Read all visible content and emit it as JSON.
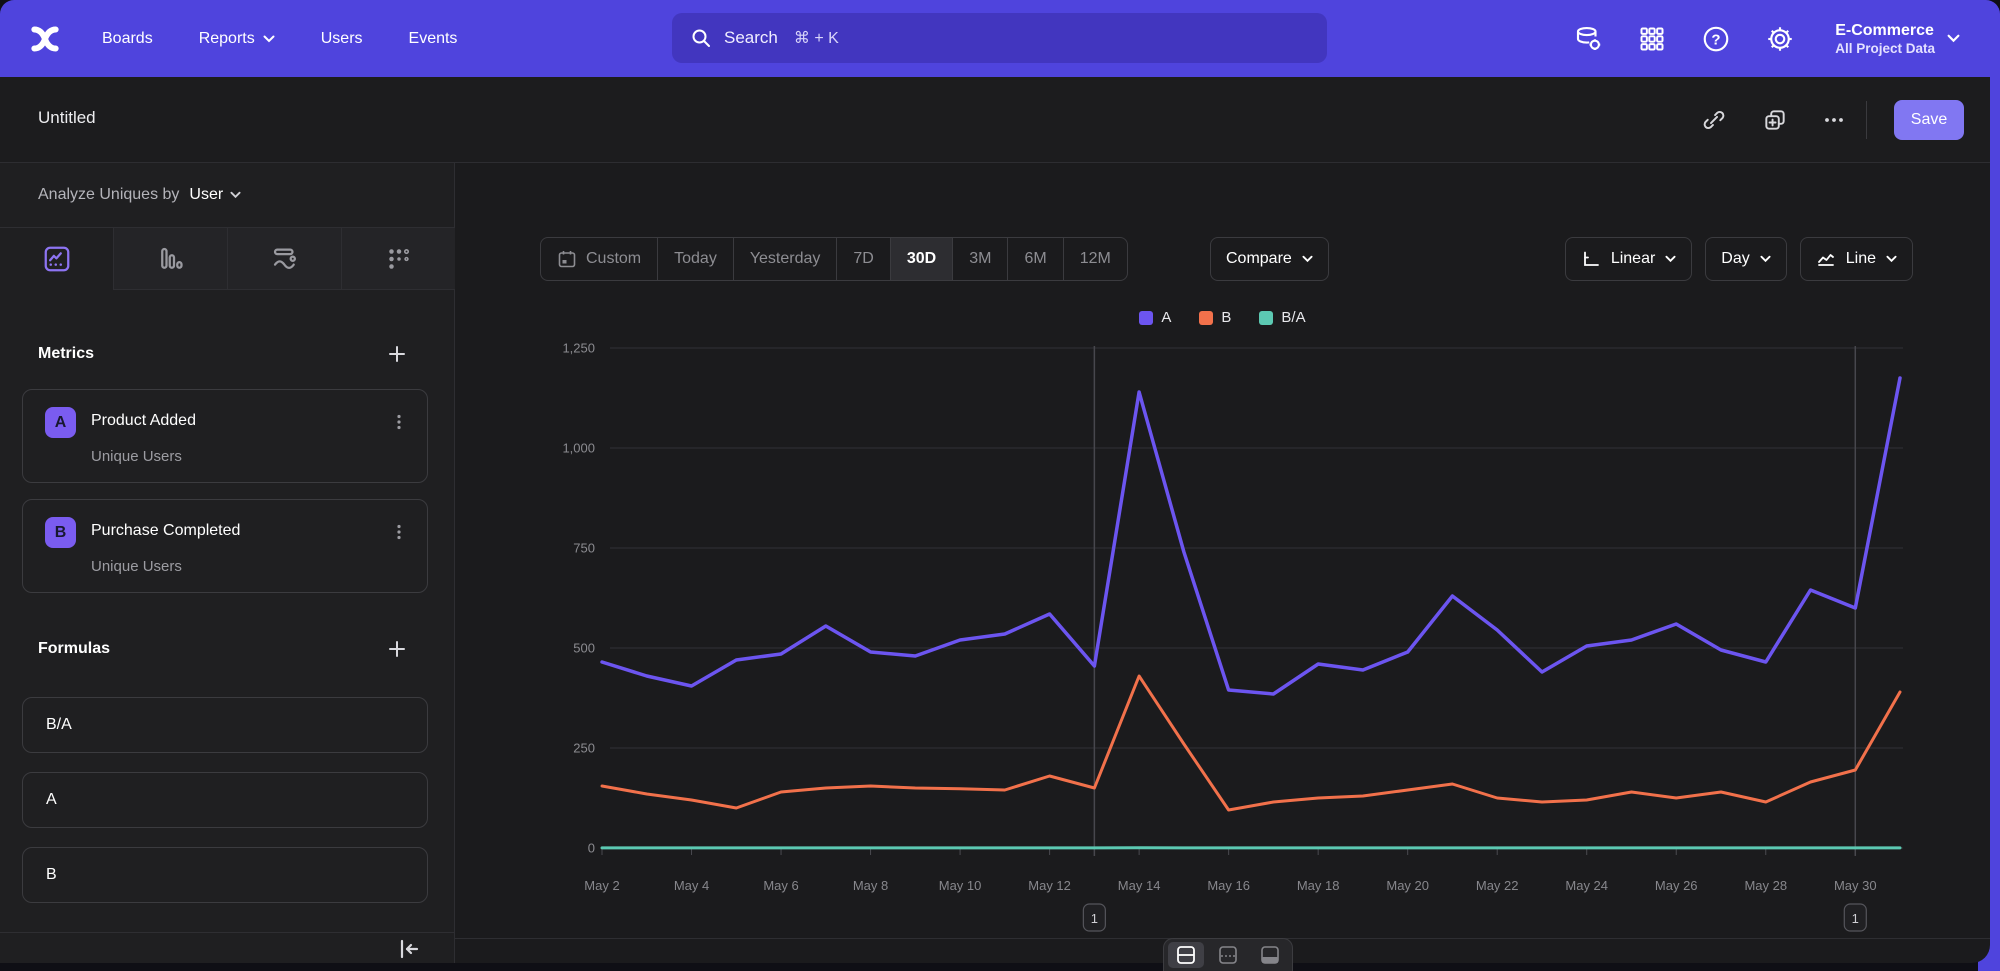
{
  "ui": {
    "nav_bg": "#4f44dd",
    "search_bg": "#4236bf",
    "save_bg": "#8177f2",
    "accent": "#7a5cf0",
    "panel_bg": "#1b1b1d"
  },
  "nav": {
    "brand": "Mixpanel",
    "items": [
      {
        "label": "Boards"
      },
      {
        "label": "Reports"
      },
      {
        "label": "Users"
      },
      {
        "label": "Events"
      }
    ],
    "search_label": "Search",
    "search_shortcut": "⌘ + K",
    "project_name": "E-Commerce",
    "project_scope": "All Project Data"
  },
  "toolbar": {
    "title": "Untitled",
    "save_label": "Save"
  },
  "sidebar": {
    "analyze_prefix": "Analyze Uniques by",
    "analyze_value": "User",
    "metrics_title": "Metrics",
    "metrics": [
      {
        "letter": "A",
        "name": "Product Added",
        "measure": "Unique Users"
      },
      {
        "letter": "B",
        "name": "Purchase Completed",
        "measure": "Unique Users"
      }
    ],
    "formulas_title": "Formulas",
    "formulas": [
      {
        "label": "B/A"
      },
      {
        "label": "A"
      },
      {
        "label": "B"
      }
    ]
  },
  "controls": {
    "ranges": [
      "Custom",
      "Today",
      "Yesterday",
      "7D",
      "30D",
      "3M",
      "6M",
      "12M"
    ],
    "selected_range": "30D",
    "compare_label": "Compare",
    "scale_label": "Linear",
    "interval_label": "Day",
    "chart_type_label": "Line"
  },
  "annotations": [
    {
      "label": "1",
      "x_index": 11
    },
    {
      "label": "1",
      "x_index": 28
    }
  ],
  "chart_data": {
    "type": "line",
    "title": "",
    "xlabel": "",
    "ylabel": "",
    "ylim": [
      0,
      1250
    ],
    "yticks": [
      0,
      250,
      500,
      750,
      1000,
      1250
    ],
    "ytick_labels": [
      "0",
      "250",
      "500",
      "750",
      "1,000",
      "1,250"
    ],
    "xtick_every": 2,
    "grid": true,
    "legend_position": "top",
    "x": [
      "May 2",
      "May 3",
      "May 4",
      "May 5",
      "May 6",
      "May 7",
      "May 8",
      "May 9",
      "May 10",
      "May 11",
      "May 12",
      "May 13",
      "May 14",
      "May 15",
      "May 16",
      "May 17",
      "May 18",
      "May 19",
      "May 20",
      "May 21",
      "May 22",
      "May 23",
      "May 24",
      "May 25",
      "May 26",
      "May 27",
      "May 28",
      "May 29",
      "May 30",
      "May 31"
    ],
    "series": [
      {
        "name": "B/A",
        "color": "#5cc9b2",
        "z": 1,
        "values": [
          0.33,
          0.31,
          0.3,
          0.21,
          0.29,
          0.27,
          0.32,
          0.31,
          0.28,
          0.27,
          0.31,
          0.33,
          0.38,
          0.35,
          0.24,
          0.3,
          0.27,
          0.29,
          0.3,
          0.25,
          0.23,
          0.26,
          0.24,
          0.27,
          0.22,
          0.28,
          0.25,
          0.26,
          0.33,
          0.33
        ]
      },
      {
        "name": "B",
        "color": "#f2714b",
        "z": 2,
        "values": [
          155,
          135,
          120,
          100,
          140,
          150,
          155,
          150,
          148,
          145,
          180,
          150,
          430,
          260,
          95,
          115,
          125,
          130,
          145,
          160,
          125,
          115,
          120,
          140,
          125,
          140,
          115,
          165,
          195,
          390
        ]
      },
      {
        "name": "A",
        "color": "#6c55f0",
        "z": 3,
        "values": [
          465,
          430,
          405,
          470,
          485,
          555,
          490,
          480,
          520,
          535,
          585,
          455,
          1140,
          740,
          395,
          385,
          460,
          445,
          490,
          630,
          545,
          440,
          505,
          520,
          560,
          495,
          465,
          645,
          600,
          1175
        ]
      }
    ]
  }
}
